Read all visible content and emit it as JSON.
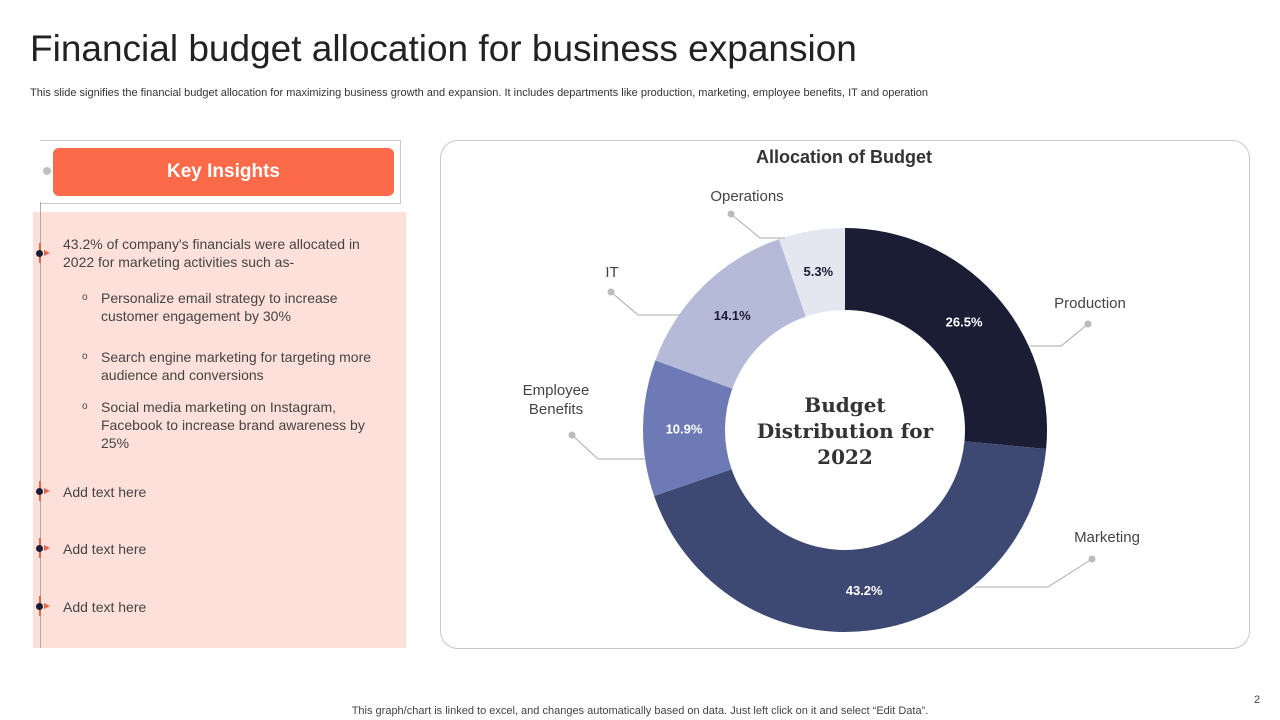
{
  "title": "Financial budget allocation for business expansion",
  "subtitle": "This slide signifies the financial budget allocation for maximizing business growth and expansion. It includes departments like production, marketing, employee benefits, IT and operation",
  "insights": {
    "heading": "Key Insights",
    "main": "43.2% of company's financials were allocated in 2022 for marketing activities such as-",
    "sub": [
      "Personalize email strategy to increase customer engagement by 30%",
      "Search engine marketing for targeting more audience and conversions",
      "Social media marketing on Instagram, Facebook to increase brand awareness by 25%"
    ],
    "placeholders": [
      "Add text here",
      "Add text here",
      "Add text here"
    ]
  },
  "chart_data": {
    "type": "pie",
    "title": "Allocation of Budget",
    "center_label": [
      "Budget",
      "Distribution for",
      "2022"
    ],
    "categories": [
      "Production",
      "Marketing",
      "Employee Benefits",
      "IT",
      "Operations"
    ],
    "values": [
      26.5,
      43.2,
      10.9,
      14.1,
      5.3
    ],
    "value_labels": [
      "26.5%",
      "43.2%",
      "10.9%",
      "14.1%",
      "5.3%"
    ],
    "colors": [
      "#1a1d33",
      "#3d4873",
      "#6e7ab5",
      "#b5bad9",
      "#e4e6f0"
    ],
    "label_colors": [
      "#ffffff",
      "#ffffff",
      "#ffffff",
      "#1a1d33",
      "#1a1d33"
    ]
  },
  "footer": "This graph/chart is linked to excel, and changes automatically based on data. Just left click on it and select “Edit Data”.",
  "page_number": "2"
}
